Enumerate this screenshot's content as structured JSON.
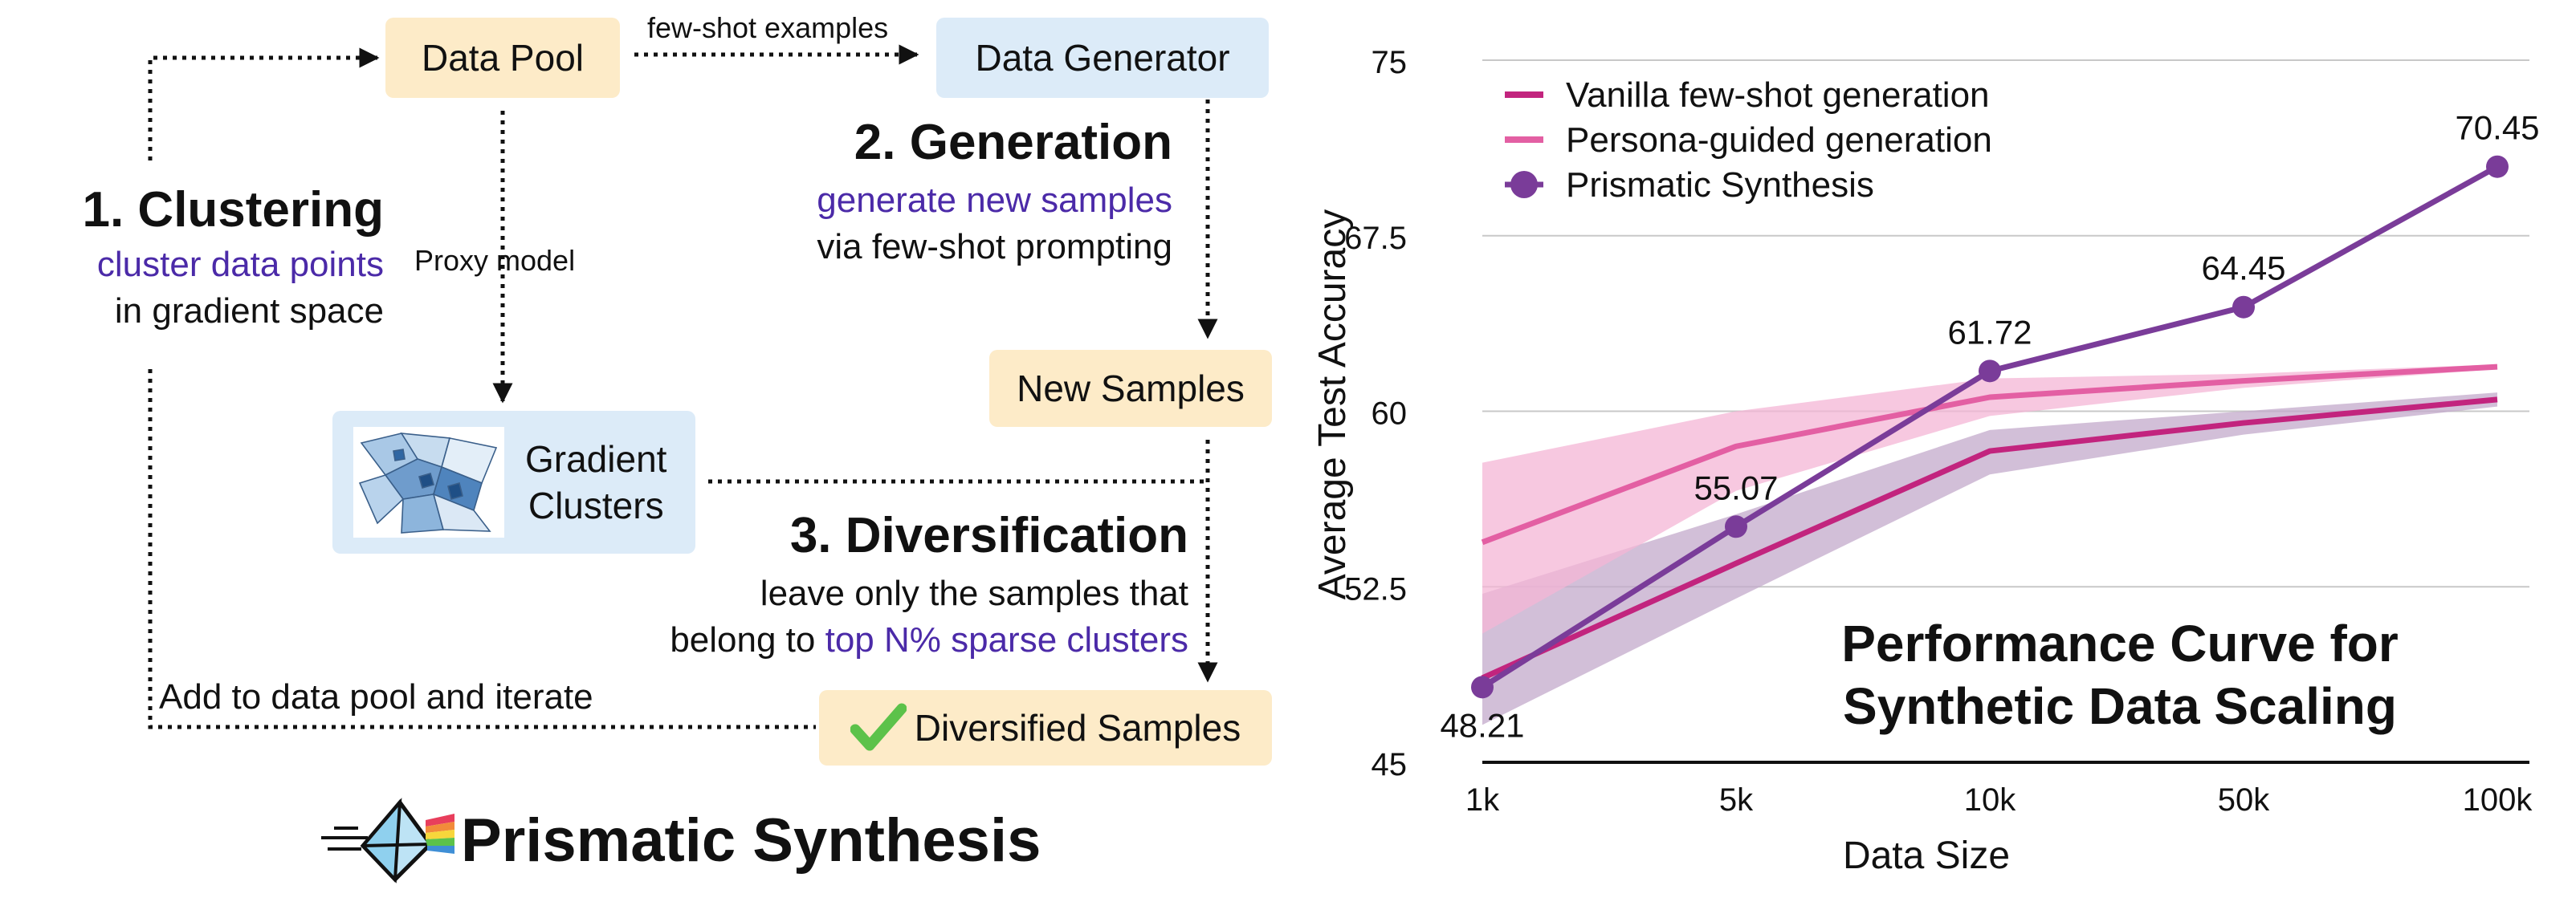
{
  "diagram": {
    "boxes": {
      "data_pool": "Data Pool",
      "data_generator": "Data Generator",
      "new_samples": "New Samples",
      "gradient_clusters_line1": "Gradient",
      "gradient_clusters_line2": "Clusters",
      "diversified_samples": "Diversified Samples"
    },
    "edge_labels": {
      "few_shot": "few-shot examples",
      "proxy_model": "Proxy model",
      "iterate": "Add to data pool and iterate"
    },
    "steps": {
      "clustering": {
        "title": "1. Clustering",
        "line1_accent": "cluster data points",
        "line2": "in gradient space"
      },
      "generation": {
        "title": "2. Generation",
        "line1_accent": "generate new samples",
        "line2": "via few-shot prompting"
      },
      "diversification": {
        "title": "3. Diversification",
        "line1": "leave only the samples that",
        "line2_prefix": "belong to ",
        "line2_accent": "top N% sparse clusters"
      }
    },
    "logo_text": "Prismatic Synthesis",
    "colors": {
      "accent_text": "#4b2aa8",
      "box_peach": "#fdebc8",
      "box_blue": "#dcebf8",
      "check": "#5cc24a"
    }
  },
  "chart_data": {
    "type": "line",
    "title_line1": "Performance Curve for",
    "title_line2": "Synthetic Data Scaling",
    "xlabel": "Data Size",
    "ylabel": "Average Test Accuracy",
    "categories": [
      "1k",
      "5k",
      "10k",
      "50k",
      "100k"
    ],
    "ylim": [
      45,
      75
    ],
    "yticks": [
      45,
      52.5,
      60,
      67.5,
      75
    ],
    "ytick_labels": [
      "45",
      "52.5",
      "60",
      "67.5",
      "75"
    ],
    "legend_position": "top-left",
    "series": [
      {
        "name": "Vanilla few-shot generation",
        "color": "#c2247e",
        "values": [
          48.6,
          53.5,
          58.3,
          59.5,
          60.5
        ],
        "band_lower": [
          46.6,
          52.0,
          57.3,
          59.0,
          60.2
        ],
        "band_upper": [
          52.2,
          55.6,
          59.2,
          60.0,
          60.8
        ],
        "band_color": "#c3aacb"
      },
      {
        "name": "Persona-guided generation",
        "color": "#e35fa3",
        "values": [
          54.4,
          58.5,
          60.6,
          61.3,
          61.9
        ],
        "band_lower": [
          50.5,
          56.6,
          59.8,
          61.0,
          61.8
        ],
        "band_upper": [
          57.8,
          60.0,
          61.4,
          61.6,
          62.0
        ],
        "band_color": "#f4b6d6"
      },
      {
        "name": "Prismatic Synthesis",
        "color": "#7a3c99",
        "markers": true,
        "values": [
          48.21,
          55.07,
          61.72,
          64.45,
          70.45
        ],
        "data_labels": [
          "48.21",
          "55.07",
          "61.72",
          "64.45",
          "70.45"
        ]
      }
    ]
  }
}
